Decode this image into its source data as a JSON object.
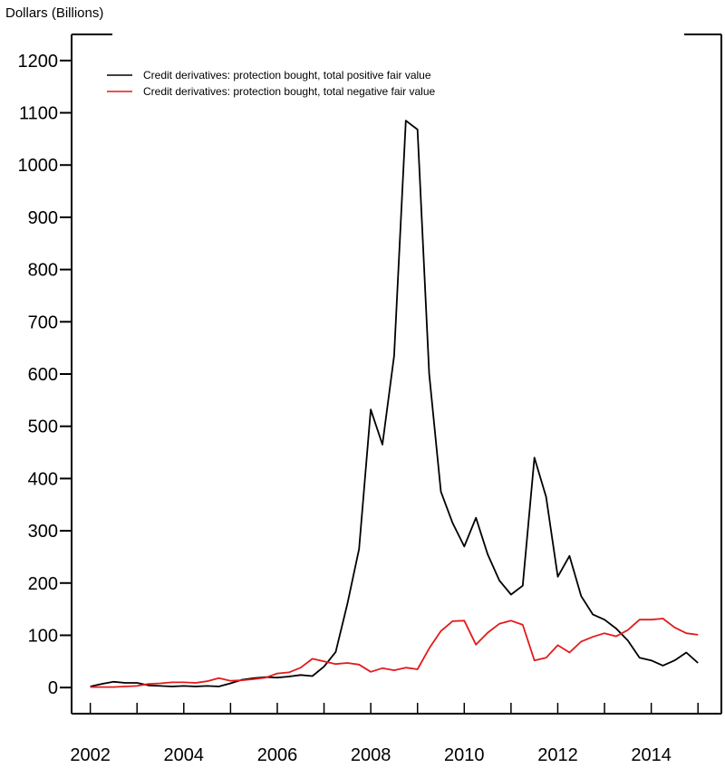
{
  "chart_data": {
    "type": "line",
    "ylabel": "Dollars (Billions)",
    "xlim": [
      2001.6,
      2015.5
    ],
    "ylim": [
      -50,
      1250
    ],
    "yticks": [
      0,
      100,
      200,
      300,
      400,
      500,
      600,
      700,
      800,
      900,
      1000,
      1100,
      1200
    ],
    "xticks": [
      2002,
      2004,
      2006,
      2008,
      2010,
      2012,
      2014
    ],
    "legend_position": "top-left",
    "series": [
      {
        "name": "Credit derivatives: protection bought, total positive fair value",
        "color": "#000000",
        "x": [
          2002.0,
          2002.25,
          2002.5,
          2002.75,
          2003.0,
          2003.25,
          2003.5,
          2003.75,
          2004.0,
          2004.25,
          2004.5,
          2004.75,
          2005.0,
          2005.25,
          2005.5,
          2005.75,
          2006.0,
          2006.25,
          2006.5,
          2006.75,
          2007.0,
          2007.25,
          2007.5,
          2007.75,
          2008.0,
          2008.25,
          2008.5,
          2008.75,
          2009.0,
          2009.25,
          2009.5,
          2009.75,
          2010.0,
          2010.25,
          2010.5,
          2010.75,
          2011.0,
          2011.25,
          2011.5,
          2011.75,
          2012.0,
          2012.25,
          2012.5,
          2012.75,
          2013.0,
          2013.25,
          2013.5,
          2013.75,
          2014.0,
          2014.25,
          2014.5,
          2014.75,
          2015.0
        ],
        "values": [
          2,
          7,
          11,
          9,
          9,
          4,
          3,
          2,
          3,
          2,
          3,
          2,
          8,
          15,
          18,
          20,
          19,
          21,
          24,
          22,
          40,
          68,
          160,
          265,
          532,
          465,
          635,
          1085,
          1068,
          600,
          375,
          315,
          270,
          325,
          255,
          205,
          178,
          195,
          440,
          365,
          212,
          252,
          175,
          140,
          130,
          113,
          90,
          57,
          52,
          42,
          52,
          67,
          47
        ]
      },
      {
        "name": "Credit derivatives: protection bought, total negative fair value",
        "color": "#e31a1c",
        "x": [
          2002.0,
          2002.25,
          2002.5,
          2002.75,
          2003.0,
          2003.25,
          2003.5,
          2003.75,
          2004.0,
          2004.25,
          2004.5,
          2004.75,
          2005.0,
          2005.25,
          2005.5,
          2005.75,
          2006.0,
          2006.25,
          2006.5,
          2006.75,
          2007.0,
          2007.25,
          2007.5,
          2007.75,
          2008.0,
          2008.25,
          2008.5,
          2008.75,
          2009.0,
          2009.25,
          2009.5,
          2009.75,
          2010.0,
          2010.25,
          2010.5,
          2010.75,
          2011.0,
          2011.25,
          2011.5,
          2011.75,
          2012.0,
          2012.25,
          2012.5,
          2012.75,
          2013.0,
          2013.25,
          2013.5,
          2013.75,
          2014.0,
          2014.25,
          2014.5,
          2014.75,
          2015.0
        ],
        "values": [
          1,
          1,
          1,
          2,
          3,
          7,
          8,
          10,
          10,
          9,
          12,
          18,
          13,
          14,
          16,
          19,
          27,
          29,
          38,
          55,
          50,
          45,
          47,
          44,
          30,
          37,
          33,
          38,
          35,
          75,
          108,
          127,
          128,
          82,
          105,
          122,
          128,
          120,
          52,
          57,
          81,
          67,
          88,
          97,
          104,
          98,
          110,
          130,
          130,
          132,
          115,
          104,
          101
        ]
      }
    ]
  }
}
